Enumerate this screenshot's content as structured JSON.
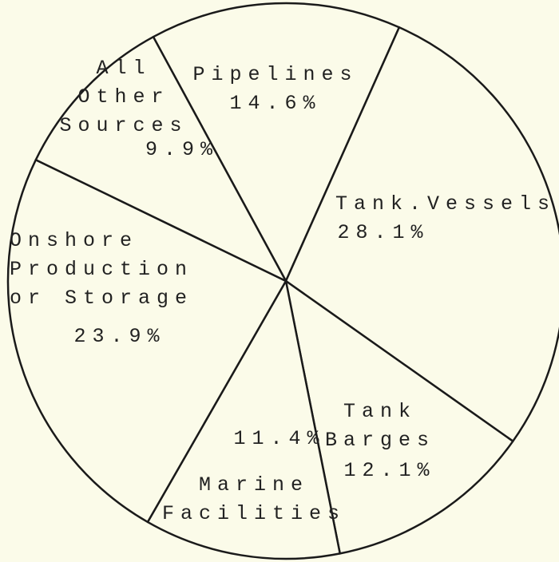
{
  "chart_data": {
    "type": "pie",
    "categories": [
      "Pipelines",
      "Tank.Vessels",
      "Tank\nBarges",
      "Marine\nFacilities",
      "Onshore\nProduction\nor Storage",
      "All\nOther\nSources"
    ],
    "values": [
      14.6,
      28.1,
      12.1,
      11.4,
      23.9,
      9.9
    ],
    "value_labels": [
      "14.6%",
      "28.1%",
      "12.1%",
      "11.4%",
      "23.9%",
      "9.9%"
    ]
  }
}
